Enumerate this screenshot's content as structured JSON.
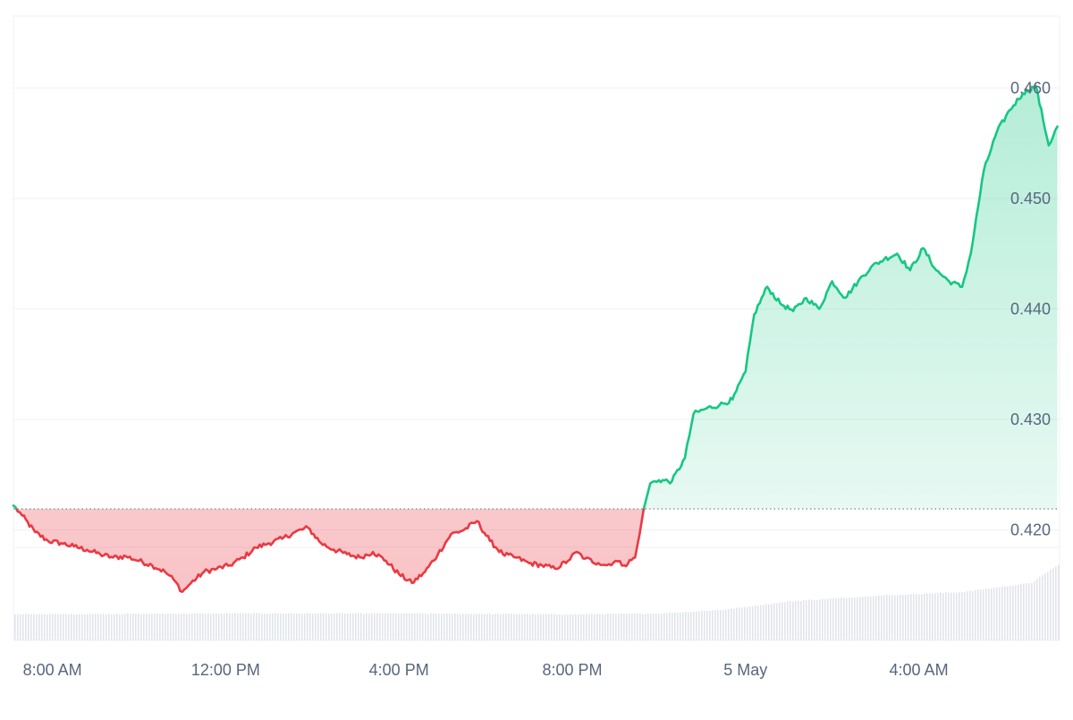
{
  "chart_data": {
    "type": "area",
    "title": "",
    "xlabel": "",
    "ylabel": "",
    "baseline": 0.4219,
    "ylim": [
      0.41,
      0.4665
    ],
    "yticks": [
      0.42,
      0.43,
      0.44,
      0.45,
      0.46
    ],
    "ytick_labels": [
      "0.420",
      "0.430",
      "0.440",
      "0.450",
      "0.460"
    ],
    "xlim": [
      7.1,
      31.25
    ],
    "xticks": [
      8,
      12,
      16,
      20,
      24,
      28
    ],
    "xtick_labels": [
      "8:00 AM",
      "12:00 PM",
      "4:00 PM",
      "8:00 PM",
      "5 May",
      "4:00 AM"
    ],
    "grid": true,
    "colors": {
      "up": "#16c784",
      "down": "#ea3943",
      "up_fill": "#16c784",
      "down_fill": "#ea3943",
      "volume": "#e1e4ea",
      "grid": "#eff2f5",
      "axis_text": "#58667e",
      "baseline": "#7d8596"
    },
    "price_points": [
      [
        7.1,
        0.4222
      ],
      [
        7.3,
        0.4213
      ],
      [
        7.6,
        0.4198
      ],
      [
        7.9,
        0.419
      ],
      [
        8.2,
        0.4188
      ],
      [
        8.5,
        0.4185
      ],
      [
        8.8,
        0.4182
      ],
      [
        9.1,
        0.4178
      ],
      [
        9.4,
        0.4175
      ],
      [
        9.7,
        0.4176
      ],
      [
        10.0,
        0.4172
      ],
      [
        10.3,
        0.4168
      ],
      [
        10.6,
        0.4162
      ],
      [
        10.8,
        0.4155
      ],
      [
        11.0,
        0.4144
      ],
      [
        11.2,
        0.4152
      ],
      [
        11.5,
        0.4162
      ],
      [
        11.8,
        0.4165
      ],
      [
        12.1,
        0.4168
      ],
      [
        12.4,
        0.4175
      ],
      [
        12.7,
        0.4184
      ],
      [
        13.0,
        0.4188
      ],
      [
        13.3,
        0.4192
      ],
      [
        13.6,
        0.4198
      ],
      [
        13.9,
        0.4202
      ],
      [
        14.2,
        0.4188
      ],
      [
        14.5,
        0.4182
      ],
      [
        14.8,
        0.4178
      ],
      [
        15.1,
        0.4175
      ],
      [
        15.4,
        0.418
      ],
      [
        15.7,
        0.4172
      ],
      [
        16.0,
        0.416
      ],
      [
        16.3,
        0.4152
      ],
      [
        16.6,
        0.4162
      ],
      [
        16.9,
        0.4178
      ],
      [
        17.2,
        0.4196
      ],
      [
        17.5,
        0.42
      ],
      [
        17.8,
        0.4208
      ],
      [
        18.1,
        0.419
      ],
      [
        18.4,
        0.4178
      ],
      [
        18.7,
        0.4175
      ],
      [
        19.0,
        0.417
      ],
      [
        19.3,
        0.4168
      ],
      [
        19.6,
        0.4165
      ],
      [
        19.9,
        0.4172
      ],
      [
        20.1,
        0.418
      ],
      [
        20.3,
        0.4174
      ],
      [
        20.6,
        0.417
      ],
      [
        20.8,
        0.4168
      ],
      [
        21.0,
        0.4172
      ],
      [
        21.2,
        0.4168
      ],
      [
        21.45,
        0.4175
      ],
      [
        21.55,
        0.4195
      ],
      [
        21.65,
        0.4219
      ],
      [
        21.8,
        0.4242
      ],
      [
        22.0,
        0.4245
      ],
      [
        22.3,
        0.4244
      ],
      [
        22.6,
        0.4265
      ],
      [
        22.8,
        0.4305
      ],
      [
        23.1,
        0.431
      ],
      [
        23.4,
        0.4313
      ],
      [
        23.7,
        0.4318
      ],
      [
        24.0,
        0.4343
      ],
      [
        24.2,
        0.4395
      ],
      [
        24.5,
        0.442
      ],
      [
        24.8,
        0.4405
      ],
      [
        25.1,
        0.4398
      ],
      [
        25.4,
        0.441
      ],
      [
        25.7,
        0.44
      ],
      [
        26.0,
        0.4425
      ],
      [
        26.3,
        0.441
      ],
      [
        26.6,
        0.4425
      ],
      [
        26.9,
        0.4438
      ],
      [
        27.2,
        0.4445
      ],
      [
        27.5,
        0.445
      ],
      [
        27.8,
        0.4435
      ],
      [
        28.1,
        0.4455
      ],
      [
        28.4,
        0.4435
      ],
      [
        28.7,
        0.4425
      ],
      [
        29.0,
        0.442
      ],
      [
        29.2,
        0.445
      ],
      [
        29.5,
        0.4525
      ],
      [
        29.8,
        0.456
      ],
      [
        30.1,
        0.458
      ],
      [
        30.4,
        0.4595
      ],
      [
        30.7,
        0.4602
      ],
      [
        31.0,
        0.4548
      ],
      [
        31.2,
        0.4565
      ]
    ],
    "volume_profile": [
      [
        7.1,
        0.28
      ],
      [
        12.0,
        0.29
      ],
      [
        16.0,
        0.29
      ],
      [
        20.0,
        0.28
      ],
      [
        22.0,
        0.29
      ],
      [
        23.5,
        0.33
      ],
      [
        25.0,
        0.42
      ],
      [
        27.0,
        0.48
      ],
      [
        29.0,
        0.52
      ],
      [
        30.6,
        0.62
      ],
      [
        31.0,
        0.75
      ],
      [
        31.25,
        0.82
      ]
    ]
  }
}
